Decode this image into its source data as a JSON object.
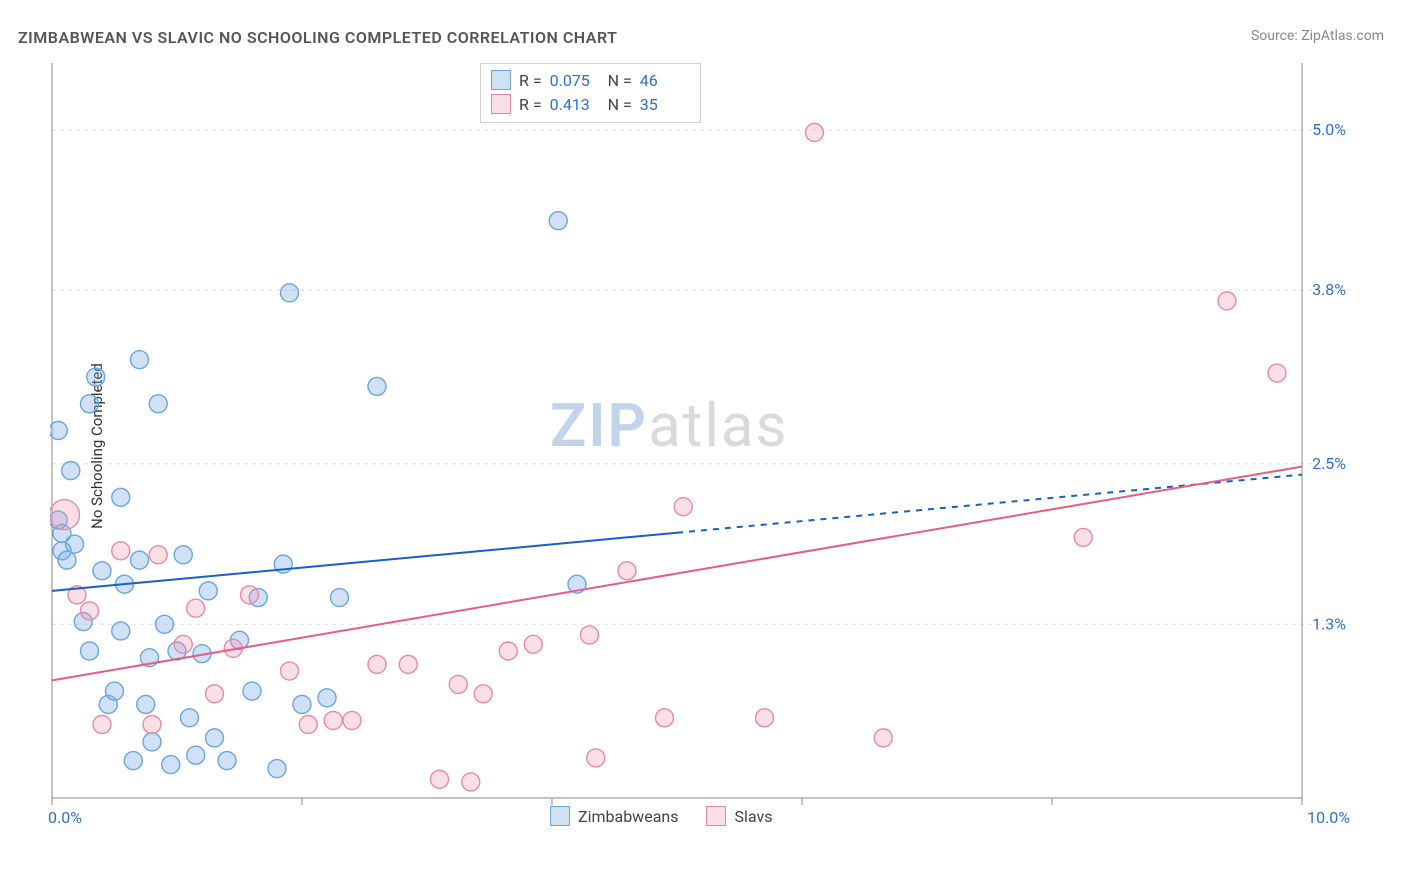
{
  "title": "ZIMBABWEAN VS SLAVIC NO SCHOOLING COMPLETED CORRELATION CHART",
  "source": "Source: ZipAtlas.com",
  "ylabel": "No Schooling Completed",
  "watermark": {
    "zip": "ZIP",
    "atlas": "atlas"
  },
  "chart": {
    "type": "scatter",
    "background_color": "#ffffff",
    "grid_color": "#dedede",
    "axis_color": "#888888",
    "tick_color": "#888888",
    "font_family": "Segoe UI, Roboto, sans-serif",
    "title_fontsize": 16,
    "label_fontsize": 15,
    "x": {
      "min": 0.0,
      "max": 10.0,
      "ticks": [
        0.0,
        2.0,
        4.0,
        6.0,
        8.0,
        10.0
      ],
      "end_labels": [
        "0.0%",
        "10.0%"
      ]
    },
    "y": {
      "min": 0.0,
      "max": 5.5,
      "ticks": [
        1.3,
        2.5,
        3.8,
        5.0
      ],
      "tick_labels": [
        "1.3%",
        "2.5%",
        "3.8%",
        "5.0%"
      ],
      "tick_label_color": "#2f6fd0"
    },
    "series": [
      {
        "name": "Zimbabweans",
        "color_fill": "rgba(120,170,230,0.35)",
        "color_stroke": "#6aa6e0",
        "marker_radius": 9,
        "trend": {
          "color": "#1860c8",
          "width": 2,
          "solid_until_x": 5.0,
          "y_at_xmin": 1.55,
          "y_at_xmax": 2.42
        },
        "R": 0.075,
        "N": 46,
        "points": [
          {
            "x": 0.05,
            "y": 2.75
          },
          {
            "x": 0.05,
            "y": 2.08
          },
          {
            "x": 0.08,
            "y": 1.85
          },
          {
            "x": 0.08,
            "y": 1.98
          },
          {
            "x": 0.12,
            "y": 1.78
          },
          {
            "x": 0.15,
            "y": 2.45
          },
          {
            "x": 0.18,
            "y": 1.9
          },
          {
            "x": 0.25,
            "y": 1.32
          },
          {
            "x": 0.3,
            "y": 1.1
          },
          {
            "x": 0.3,
            "y": 2.95
          },
          {
            "x": 0.35,
            "y": 3.15
          },
          {
            "x": 0.4,
            "y": 1.7
          },
          {
            "x": 0.45,
            "y": 0.7
          },
          {
            "x": 0.5,
            "y": 0.8
          },
          {
            "x": 0.55,
            "y": 1.25
          },
          {
            "x": 0.55,
            "y": 2.25
          },
          {
            "x": 0.58,
            "y": 1.6
          },
          {
            "x": 0.65,
            "y": 0.28
          },
          {
            "x": 0.7,
            "y": 3.28
          },
          {
            "x": 0.7,
            "y": 1.78
          },
          {
            "x": 0.75,
            "y": 0.7
          },
          {
            "x": 0.78,
            "y": 1.05
          },
          {
            "x": 0.8,
            "y": 0.42
          },
          {
            "x": 0.85,
            "y": 2.95
          },
          {
            "x": 0.9,
            "y": 1.3
          },
          {
            "x": 0.95,
            "y": 0.25
          },
          {
            "x": 1.0,
            "y": 1.1
          },
          {
            "x": 1.05,
            "y": 1.82
          },
          {
            "x": 1.1,
            "y": 0.6
          },
          {
            "x": 1.15,
            "y": 0.32
          },
          {
            "x": 1.2,
            "y": 1.08
          },
          {
            "x": 1.25,
            "y": 1.55
          },
          {
            "x": 1.3,
            "y": 0.45
          },
          {
            "x": 1.4,
            "y": 0.28
          },
          {
            "x": 1.5,
            "y": 1.18
          },
          {
            "x": 1.6,
            "y": 0.8
          },
          {
            "x": 1.65,
            "y": 1.5
          },
          {
            "x": 1.8,
            "y": 0.22
          },
          {
            "x": 1.85,
            "y": 1.75
          },
          {
            "x": 1.9,
            "y": 3.78
          },
          {
            "x": 2.0,
            "y": 0.7
          },
          {
            "x": 2.2,
            "y": 0.75
          },
          {
            "x": 2.3,
            "y": 1.5
          },
          {
            "x": 2.6,
            "y": 3.08
          },
          {
            "x": 4.05,
            "y": 4.32
          },
          {
            "x": 4.2,
            "y": 1.6
          }
        ]
      },
      {
        "name": "Slavs",
        "color_fill": "rgba(240,150,175,0.30)",
        "color_stroke": "#e88aa5",
        "marker_radius": 9,
        "trend": {
          "color": "#e85c88",
          "width": 2,
          "solid_until_x": 10.0,
          "y_at_xmin": 0.88,
          "y_at_xmax": 2.48
        },
        "R": 0.413,
        "N": 35,
        "points": [
          {
            "x": 0.1,
            "y": 2.12,
            "r": 15
          },
          {
            "x": 0.2,
            "y": 1.52
          },
          {
            "x": 0.3,
            "y": 1.4
          },
          {
            "x": 0.4,
            "y": 0.55
          },
          {
            "x": 0.55,
            "y": 1.85
          },
          {
            "x": 0.8,
            "y": 0.55
          },
          {
            "x": 0.85,
            "y": 1.82
          },
          {
            "x": 1.05,
            "y": 1.15
          },
          {
            "x": 1.15,
            "y": 1.42
          },
          {
            "x": 1.3,
            "y": 0.78
          },
          {
            "x": 1.45,
            "y": 1.12
          },
          {
            "x": 1.58,
            "y": 1.52
          },
          {
            "x": 1.9,
            "y": 0.95
          },
          {
            "x": 2.05,
            "y": 0.55
          },
          {
            "x": 2.25,
            "y": 0.58
          },
          {
            "x": 2.4,
            "y": 0.58
          },
          {
            "x": 2.6,
            "y": 1.0
          },
          {
            "x": 2.85,
            "y": 1.0
          },
          {
            "x": 3.1,
            "y": 0.14
          },
          {
            "x": 3.25,
            "y": 0.85
          },
          {
            "x": 3.35,
            "y": 0.12
          },
          {
            "x": 3.45,
            "y": 0.78
          },
          {
            "x": 3.65,
            "y": 1.1
          },
          {
            "x": 3.85,
            "y": 1.15
          },
          {
            "x": 4.3,
            "y": 1.22
          },
          {
            "x": 4.35,
            "y": 0.3
          },
          {
            "x": 4.6,
            "y": 1.7
          },
          {
            "x": 4.9,
            "y": 0.6
          },
          {
            "x": 5.05,
            "y": 2.18
          },
          {
            "x": 5.7,
            "y": 0.6
          },
          {
            "x": 6.1,
            "y": 4.98
          },
          {
            "x": 6.65,
            "y": 0.45
          },
          {
            "x": 8.25,
            "y": 1.95
          },
          {
            "x": 9.4,
            "y": 3.72
          },
          {
            "x": 9.8,
            "y": 3.18
          }
        ]
      }
    ]
  },
  "stats_box": {
    "rows": [
      {
        "swatch_fill": "rgba(120,170,230,0.35)",
        "swatch_stroke": "#6aa6e0",
        "r_label": "R =",
        "r_val": "0.075",
        "n_label": "N =",
        "n_val": "46"
      },
      {
        "swatch_fill": "rgba(240,150,175,0.30)",
        "swatch_stroke": "#e88aa5",
        "r_label": "R =",
        "r_val": "0.413",
        "n_label": "N =",
        "n_val": "35"
      }
    ]
  },
  "bottom_legend": {
    "items": [
      {
        "swatch_fill": "rgba(120,170,230,0.35)",
        "swatch_stroke": "#6aa6e0",
        "label": "Zimbabweans"
      },
      {
        "swatch_fill": "rgba(240,150,175,0.30)",
        "swatch_stroke": "#e88aa5",
        "label": "Slavs"
      }
    ]
  }
}
